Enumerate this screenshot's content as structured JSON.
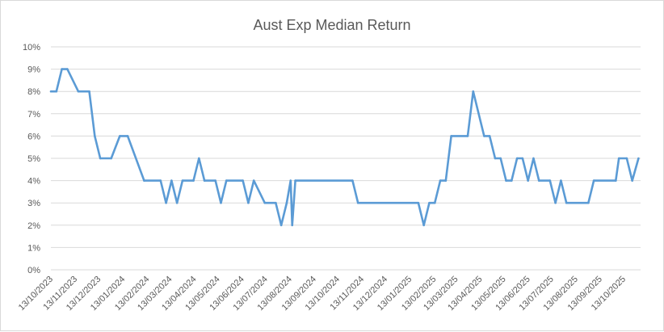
{
  "chart_data": {
    "type": "line",
    "title": "Aust Exp Median Return",
    "xlabel": "",
    "ylabel": "",
    "ylim": [
      0,
      10
    ],
    "y_ticks": [
      "0%",
      "1%",
      "2%",
      "3%",
      "4%",
      "5%",
      "6%",
      "7%",
      "8%",
      "9%",
      "10%"
    ],
    "x_axis": "date",
    "xlim": [
      "2023-10-13",
      "2025-11-01"
    ],
    "x_ticks": [
      "13/10/2023",
      "13/11/2023",
      "13/12/2023",
      "13/01/2024",
      "13/02/2024",
      "13/03/2024",
      "13/04/2024",
      "13/05/2024",
      "13/06/2024",
      "13/07/2024",
      "13/08/2024",
      "13/09/2024",
      "13/10/2024",
      "13/11/2024",
      "13/12/2024",
      "13/01/2025",
      "13/02/2025",
      "13/03/2025",
      "13/04/2025",
      "13/05/2025",
      "13/06/2025",
      "13/07/2025",
      "13/08/2025",
      "13/09/2025",
      "13/10/2025"
    ],
    "grid": true,
    "legend": "none",
    "series_color": "#5b9bd5",
    "series": [
      {
        "x": [
          "2023-10-13",
          "2023-10-20",
          "2023-10-27",
          "2023-11-03",
          "2023-11-17",
          "2023-12-01",
          "2023-12-08",
          "2023-12-15",
          "2023-12-29",
          "2024-01-09",
          "2024-01-19",
          "2024-02-09",
          "2024-03-01",
          "2024-03-08",
          "2024-03-15",
          "2024-03-22",
          "2024-03-29",
          "2024-04-12",
          "2024-04-19",
          "2024-04-26",
          "2024-05-10",
          "2024-05-17",
          "2024-05-24",
          "2024-06-14",
          "2024-06-21",
          "2024-06-28",
          "2024-07-12",
          "2024-07-26",
          "2024-08-02",
          "2024-08-09",
          "2024-08-14",
          "2024-08-16",
          "2024-08-20",
          "2024-11-01",
          "2024-11-08",
          "2025-01-24",
          "2025-01-31",
          "2025-02-07",
          "2025-02-14",
          "2025-02-21",
          "2025-02-28",
          "2025-03-07",
          "2025-03-28",
          "2025-04-04",
          "2025-04-18",
          "2025-04-25",
          "2025-05-02",
          "2025-05-09",
          "2025-05-16",
          "2025-05-23",
          "2025-05-30",
          "2025-06-06",
          "2025-06-13",
          "2025-06-20",
          "2025-06-27",
          "2025-07-11",
          "2025-07-18",
          "2025-07-25",
          "2025-08-01",
          "2025-08-29",
          "2025-09-05",
          "2025-10-03",
          "2025-10-07",
          "2025-10-17",
          "2025-10-24",
          "2025-11-01"
        ],
        "y": [
          8,
          8,
          9,
          9,
          8,
          8,
          6,
          5,
          5,
          6,
          6,
          4,
          4,
          3,
          4,
          3,
          4,
          4,
          5,
          4,
          4,
          3,
          4,
          4,
          3,
          4,
          3,
          3,
          2,
          3,
          4,
          2,
          4,
          4,
          3,
          3,
          2,
          3,
          3,
          4,
          4,
          6,
          6,
          8,
          6,
          6,
          5,
          5,
          4,
          4,
          5,
          5,
          4,
          5,
          4,
          4,
          3,
          4,
          3,
          3,
          4,
          4,
          5,
          5,
          4,
          5
        ]
      }
    ]
  }
}
